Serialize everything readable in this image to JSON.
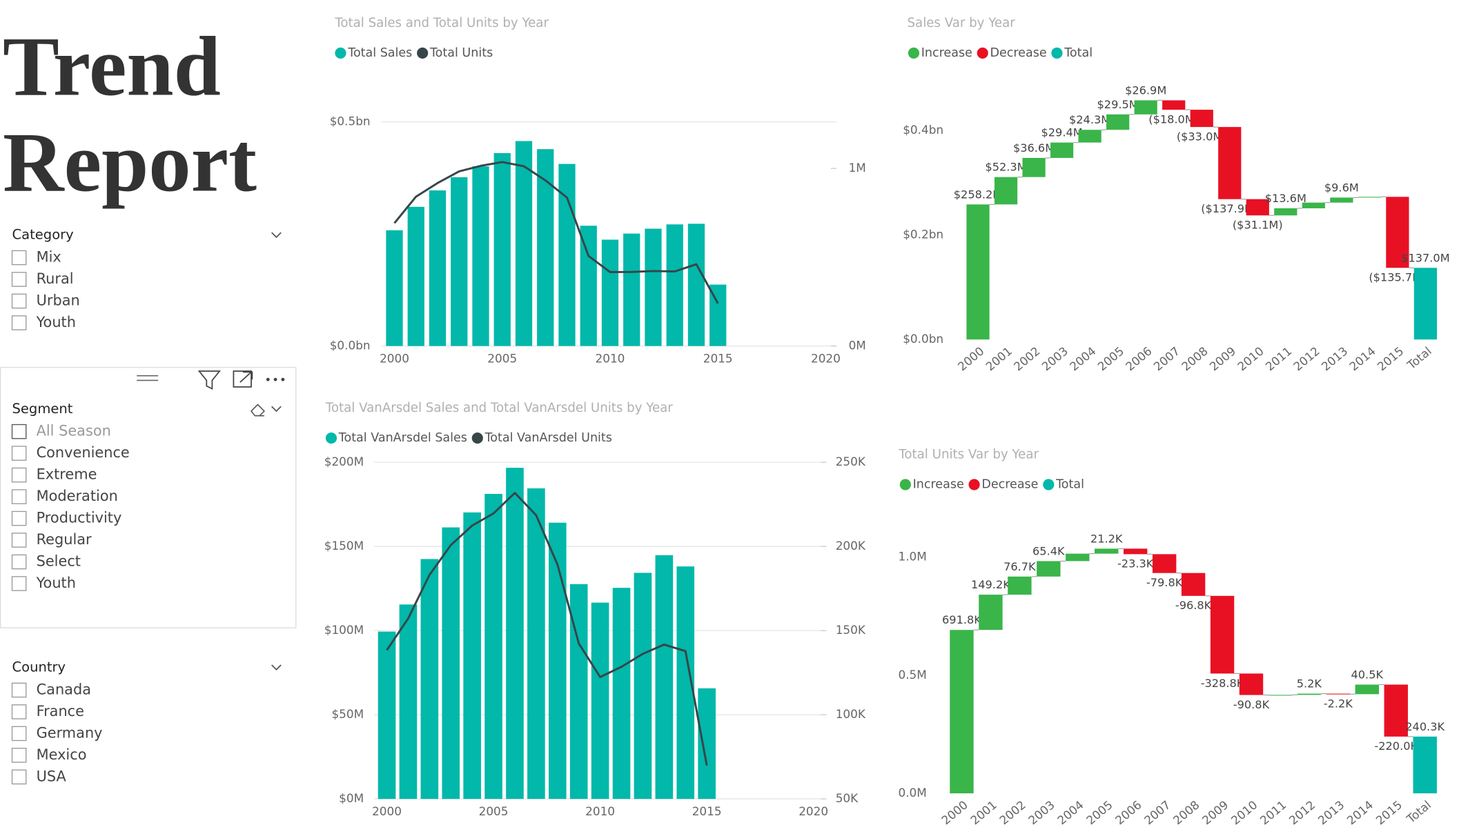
{
  "header": {
    "title_lines": [
      "Trend",
      "Report"
    ]
  },
  "slicers": [
    {
      "title": "Category",
      "items": [
        "Mix",
        "Rural",
        "Urban",
        "Youth"
      ]
    },
    {
      "title": "Segment",
      "items": [
        "All Season",
        "Convenience",
        "Extreme",
        "Moderation",
        "Productivity",
        "Regular",
        "Select",
        "Youth"
      ]
    },
    {
      "title": "Country",
      "items": [
        "Canada",
        "France",
        "Germany",
        "Mexico",
        "USA"
      ]
    }
  ],
  "chart_data": [
    {
      "type": "combo",
      "title": "Total Sales and Total Units by Year",
      "x": [
        2000,
        2001,
        2002,
        2003,
        2004,
        2005,
        2006,
        2007,
        2008,
        2009,
        2010,
        2011,
        2012,
        2013,
        2014,
        2015
      ],
      "xlim": [
        1999.4,
        2020.5
      ],
      "xticks": [
        2000,
        2005,
        2010,
        2015,
        2020
      ],
      "ylim": [
        0,
        0.5
      ],
      "yticks": [
        {
          "value": 0,
          "label": "$0.0bn"
        },
        {
          "value": 0.5,
          "label": "$0.5bn"
        }
      ],
      "y2lim": [
        0,
        1.262
      ],
      "y2ticks": [
        {
          "value": 0,
          "label": "0M"
        },
        {
          "value": 1,
          "label": "1M"
        }
      ],
      "grid": true,
      "series": [
        {
          "name": "Total Sales",
          "type": "bar",
          "color": "#01B8AA",
          "values": [
            0.2582,
            0.3105,
            0.3471,
            0.3765,
            0.4008,
            0.4303,
            0.4572,
            0.4392,
            0.4062,
            0.2683,
            0.2372,
            0.2508,
            0.2617,
            0.2713,
            0.2727,
            0.137
          ]
        },
        {
          "name": "Total Units",
          "type": "line",
          "axis": "y2",
          "color": "#374649",
          "values": [
            0.6918,
            0.841,
            0.9177,
            0.9831,
            1.0146,
            1.0358,
            1.0125,
            0.9327,
            0.8359,
            0.5071,
            0.4163,
            0.4168,
            0.422,
            0.4198,
            0.4603,
            0.2403
          ]
        }
      ]
    },
    {
      "type": "waterfall",
      "title": "Sales Var by Year",
      "categories": [
        "2000",
        "2001",
        "2002",
        "2003",
        "2004",
        "2005",
        "2006",
        "2007",
        "2008",
        "2009",
        "2010",
        "2011",
        "2012",
        "2013",
        "2014",
        "2015",
        "Total"
      ],
      "values": [
        0.2582,
        0.0523,
        0.0366,
        0.0294,
        0.0243,
        0.0295,
        0.0269,
        -0.018,
        -0.033,
        -0.1379,
        -0.0311,
        0.0136,
        0.0109,
        0.0096,
        0.0014,
        -0.1357,
        0.137
      ],
      "value_labels": [
        "$258.2M",
        "$52.3M",
        "$36.6M",
        "$29.4M",
        "$24.3M",
        "$29.5M",
        "$26.9M",
        "($18.0M)",
        "($33.0M)",
        "($137.9M)",
        "($31.1M)",
        "$13.6M",
        null,
        "$9.6M",
        null,
        "($135.7M)",
        "$137.0M"
      ],
      "legend": [
        {
          "name": "Increase",
          "color": "#3AB54A"
        },
        {
          "name": "Decrease",
          "color": "#E81123"
        },
        {
          "name": "Total",
          "color": "#01B8AA"
        }
      ],
      "ylim": [
        0,
        0.48
      ],
      "yticks": [
        {
          "value": 0,
          "label": "$0.0bn"
        },
        {
          "value": 0.2,
          "label": "$0.2bn"
        },
        {
          "value": 0.4,
          "label": "$0.4bn"
        }
      ],
      "grid": false
    },
    {
      "type": "combo",
      "title": "Total VanArsdel Sales and Total VanArsdel Units by Year",
      "x": [
        2000,
        2001,
        2002,
        2003,
        2004,
        2005,
        2006,
        2007,
        2008,
        2009,
        2010,
        2011,
        2012,
        2013,
        2014,
        2015
      ],
      "xlim": [
        1999.4,
        2020.6
      ],
      "xticks": [
        2000,
        2005,
        2010,
        2015,
        2020
      ],
      "ylim": [
        0,
        200
      ],
      "yticks": [
        {
          "value": 0,
          "label": "$0M"
        },
        {
          "value": 50,
          "label": "$50M"
        },
        {
          "value": 100,
          "label": "$100M"
        },
        {
          "value": 150,
          "label": "$150M"
        },
        {
          "value": 200,
          "label": "$200M"
        }
      ],
      "y2lim": [
        50,
        250
      ],
      "y2ticks": [
        {
          "value": 50,
          "label": "50K"
        },
        {
          "value": 100,
          "label": "100K"
        },
        {
          "value": 150,
          "label": "150K"
        },
        {
          "value": 200,
          "label": "200K"
        },
        {
          "value": 250,
          "label": "250K"
        }
      ],
      "grid": true,
      "series": [
        {
          "name": "Total VanArsdel Sales",
          "type": "bar",
          "color": "#01B8AA",
          "values": [
            99.4,
            115.5,
            142.5,
            161.3,
            170.2,
            181.2,
            196.7,
            184.5,
            164.1,
            127.6,
            116.6,
            125.4,
            134.3,
            144.8,
            138.1,
            65.7
          ]
        },
        {
          "name": "Total VanArsdel Units",
          "type": "line",
          "axis": "y2",
          "color": "#374649",
          "values": [
            138.4,
            157.2,
            183.1,
            200.8,
            212.4,
            219.6,
            231.8,
            218.5,
            189.2,
            142.3,
            122.4,
            128.5,
            136.2,
            141.7,
            137.8,
            69.9
          ]
        }
      ]
    },
    {
      "type": "waterfall",
      "title": "Total Units Var by Year",
      "categories": [
        "2000",
        "2001",
        "2002",
        "2003",
        "2004",
        "2005",
        "2006",
        "2007",
        "2008",
        "2009",
        "2010",
        "2011",
        "2012",
        "2013",
        "2014",
        "2015",
        "Total"
      ],
      "values": [
        0.6918,
        0.1492,
        0.0767,
        0.0654,
        0.0315,
        0.0212,
        -0.0233,
        -0.0798,
        -0.0968,
        -0.3288,
        -0.0908,
        0.0005,
        0.0052,
        -0.0022,
        0.0405,
        -0.22,
        0.2403
      ],
      "value_labels": [
        "691.8K",
        "149.2K",
        "76.7K",
        "65.4K",
        null,
        "21.2K",
        "-23.3K",
        "-79.8K",
        "-96.8K",
        "-328.8K",
        "-90.8K",
        null,
        "5.2K",
        "-2.2K",
        "40.5K",
        "-220.0K",
        "240.3K"
      ],
      "legend": [
        {
          "name": "Increase",
          "color": "#3AB54A"
        },
        {
          "name": "Decrease",
          "color": "#E81123"
        },
        {
          "name": "Total",
          "color": "#01B8AA"
        }
      ],
      "ylim": [
        0,
        1.1
      ],
      "yticks": [
        {
          "value": 0,
          "label": "0.0M"
        },
        {
          "value": 0.5,
          "label": "0.5M"
        },
        {
          "value": 1,
          "label": "1.0M"
        }
      ],
      "grid": false
    }
  ]
}
